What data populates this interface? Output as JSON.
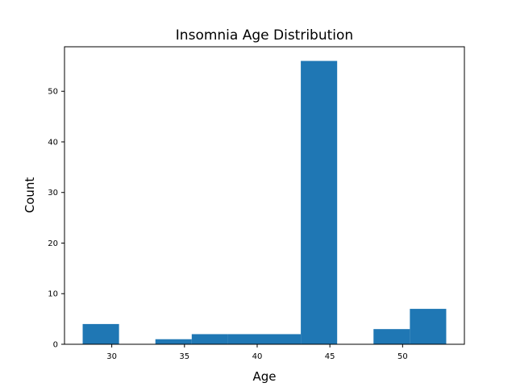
{
  "chart_data": {
    "type": "bar",
    "title": "Insomnia Age Distribution",
    "xlabel": "Age",
    "ylabel": "Count",
    "xlim": [
      26.75,
      54.25
    ],
    "ylim": [
      0,
      58.8
    ],
    "x_ticks": [
      30,
      35,
      40,
      45,
      50
    ],
    "y_ticks": [
      0,
      10,
      20,
      30,
      40,
      50
    ],
    "bin_edges": [
      28,
      30.5,
      33,
      35.5,
      38,
      40.5,
      43,
      45.5,
      48,
      50.5,
      53
    ],
    "values": [
      4,
      0,
      1,
      2,
      2,
      2,
      56,
      0,
      3,
      7
    ],
    "bar_color": "#1f77b4",
    "grid": false
  }
}
